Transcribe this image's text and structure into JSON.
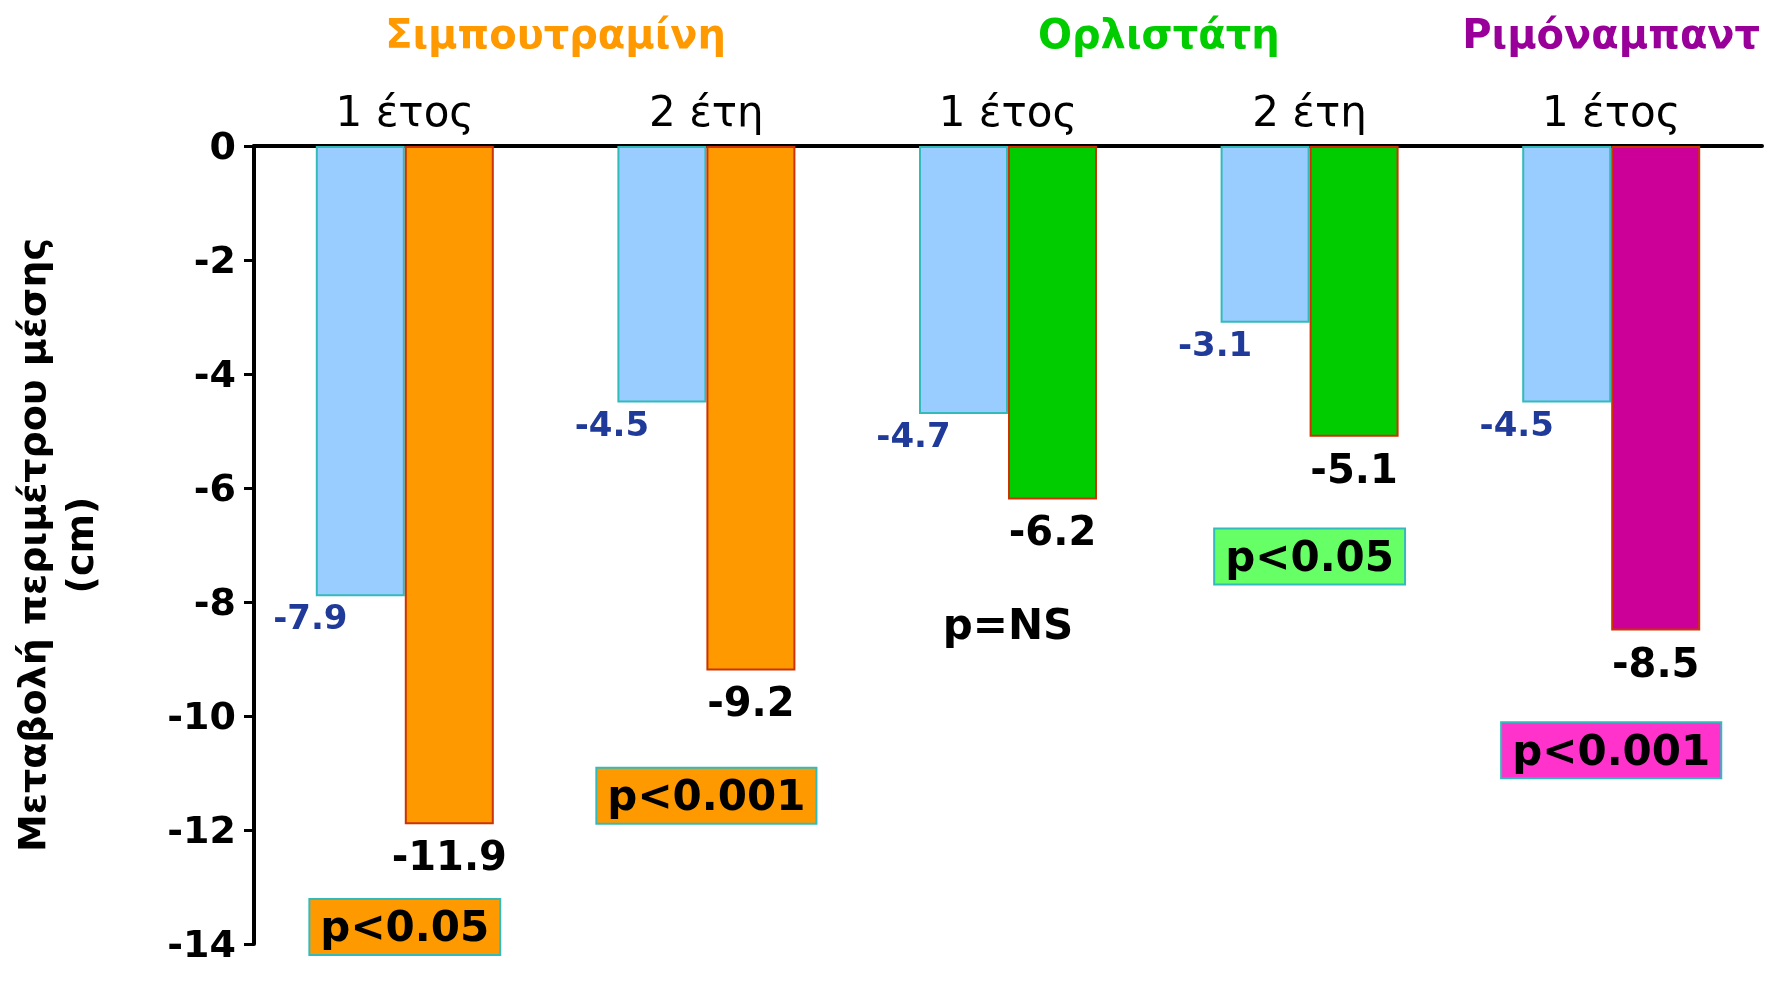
{
  "chart_data": {
    "type": "bar",
    "ylabel": "Μεταβολή περιμέτρου μέσης\n(cm)",
    "categories": [
      "1 έτος",
      "2 έτη",
      "1 έτος",
      "2 έτη",
      "1 έτος"
    ],
    "series": [
      {
        "color": "#99ccff",
        "values": [
          -7.9,
          -4.5,
          -4.7,
          -3.1,
          -4.5
        ]
      },
      {
        "colors": [
          "#ff9900",
          "#ff9900",
          "#00cc00",
          "#00cc00",
          "#cc0099"
        ],
        "values": [
          -11.9,
          -9.2,
          -6.2,
          -5.1,
          -8.5
        ]
      }
    ],
    "ylim": [
      -14,
      0
    ],
    "yticks": [
      -14,
      -12,
      -10,
      -8,
      -6,
      -4,
      -2,
      0
    ],
    "grid": false,
    "data_labels": true,
    "annotations": [
      "Σιμπουτραμίνη",
      "Ορλιστάτη",
      "Ριμόναμπαντ",
      "p<0.05",
      "p<0.001",
      "p=NS",
      "p<0.05",
      "p<0.001"
    ]
  }
}
